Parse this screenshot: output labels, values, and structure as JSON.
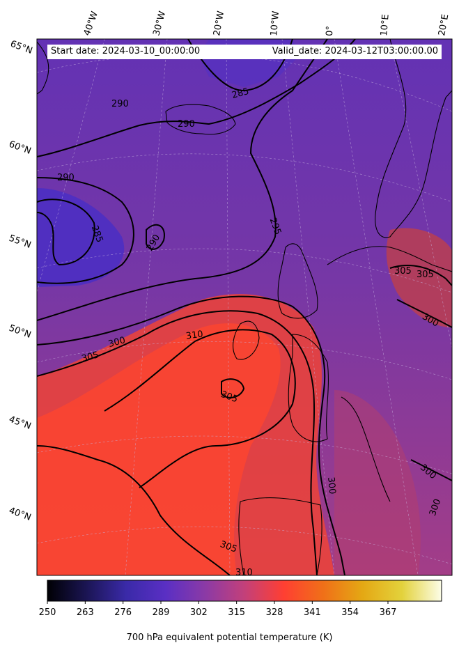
{
  "header": {
    "start_date": "Start date: 2024-03-10_00:00:00",
    "valid_date": "Valid_date: 2024-03-12T03:00:00.00"
  },
  "map": {
    "projection": "conic",
    "grid": true,
    "longitude_labels": [
      "40°W",
      "30°W",
      "20°W",
      "10°W",
      "0°",
      "10°E",
      "20°E"
    ],
    "latitude_labels": [
      "65°N",
      "60°N",
      "55°N",
      "50°N",
      "45°N",
      "40°N"
    ],
    "contour_labels": [
      "290",
      "290",
      "285",
      "290",
      "285",
      "290",
      "295",
      "305",
      "305",
      "300",
      "305",
      "300",
      "310",
      "305",
      "300",
      "300",
      "300",
      "305",
      "310"
    ]
  },
  "colorbar": {
    "title": "700 hPa equivalent potential temperature (K)",
    "ticks": [
      "250",
      "263",
      "276",
      "289",
      "302",
      "315",
      "328",
      "341",
      "354",
      "367"
    ],
    "colormap": [
      "#000004",
      "#1b1554",
      "#3a2aa8",
      "#5a2fc4",
      "#8b3aa6",
      "#c3407a",
      "#ff3f32",
      "#f07018",
      "#e4a814",
      "#e3d23c",
      "#fcfde8"
    ]
  },
  "colors": {
    "cold": "#4f2fbf",
    "warm": "#f6432f",
    "contour": "#000000"
  }
}
